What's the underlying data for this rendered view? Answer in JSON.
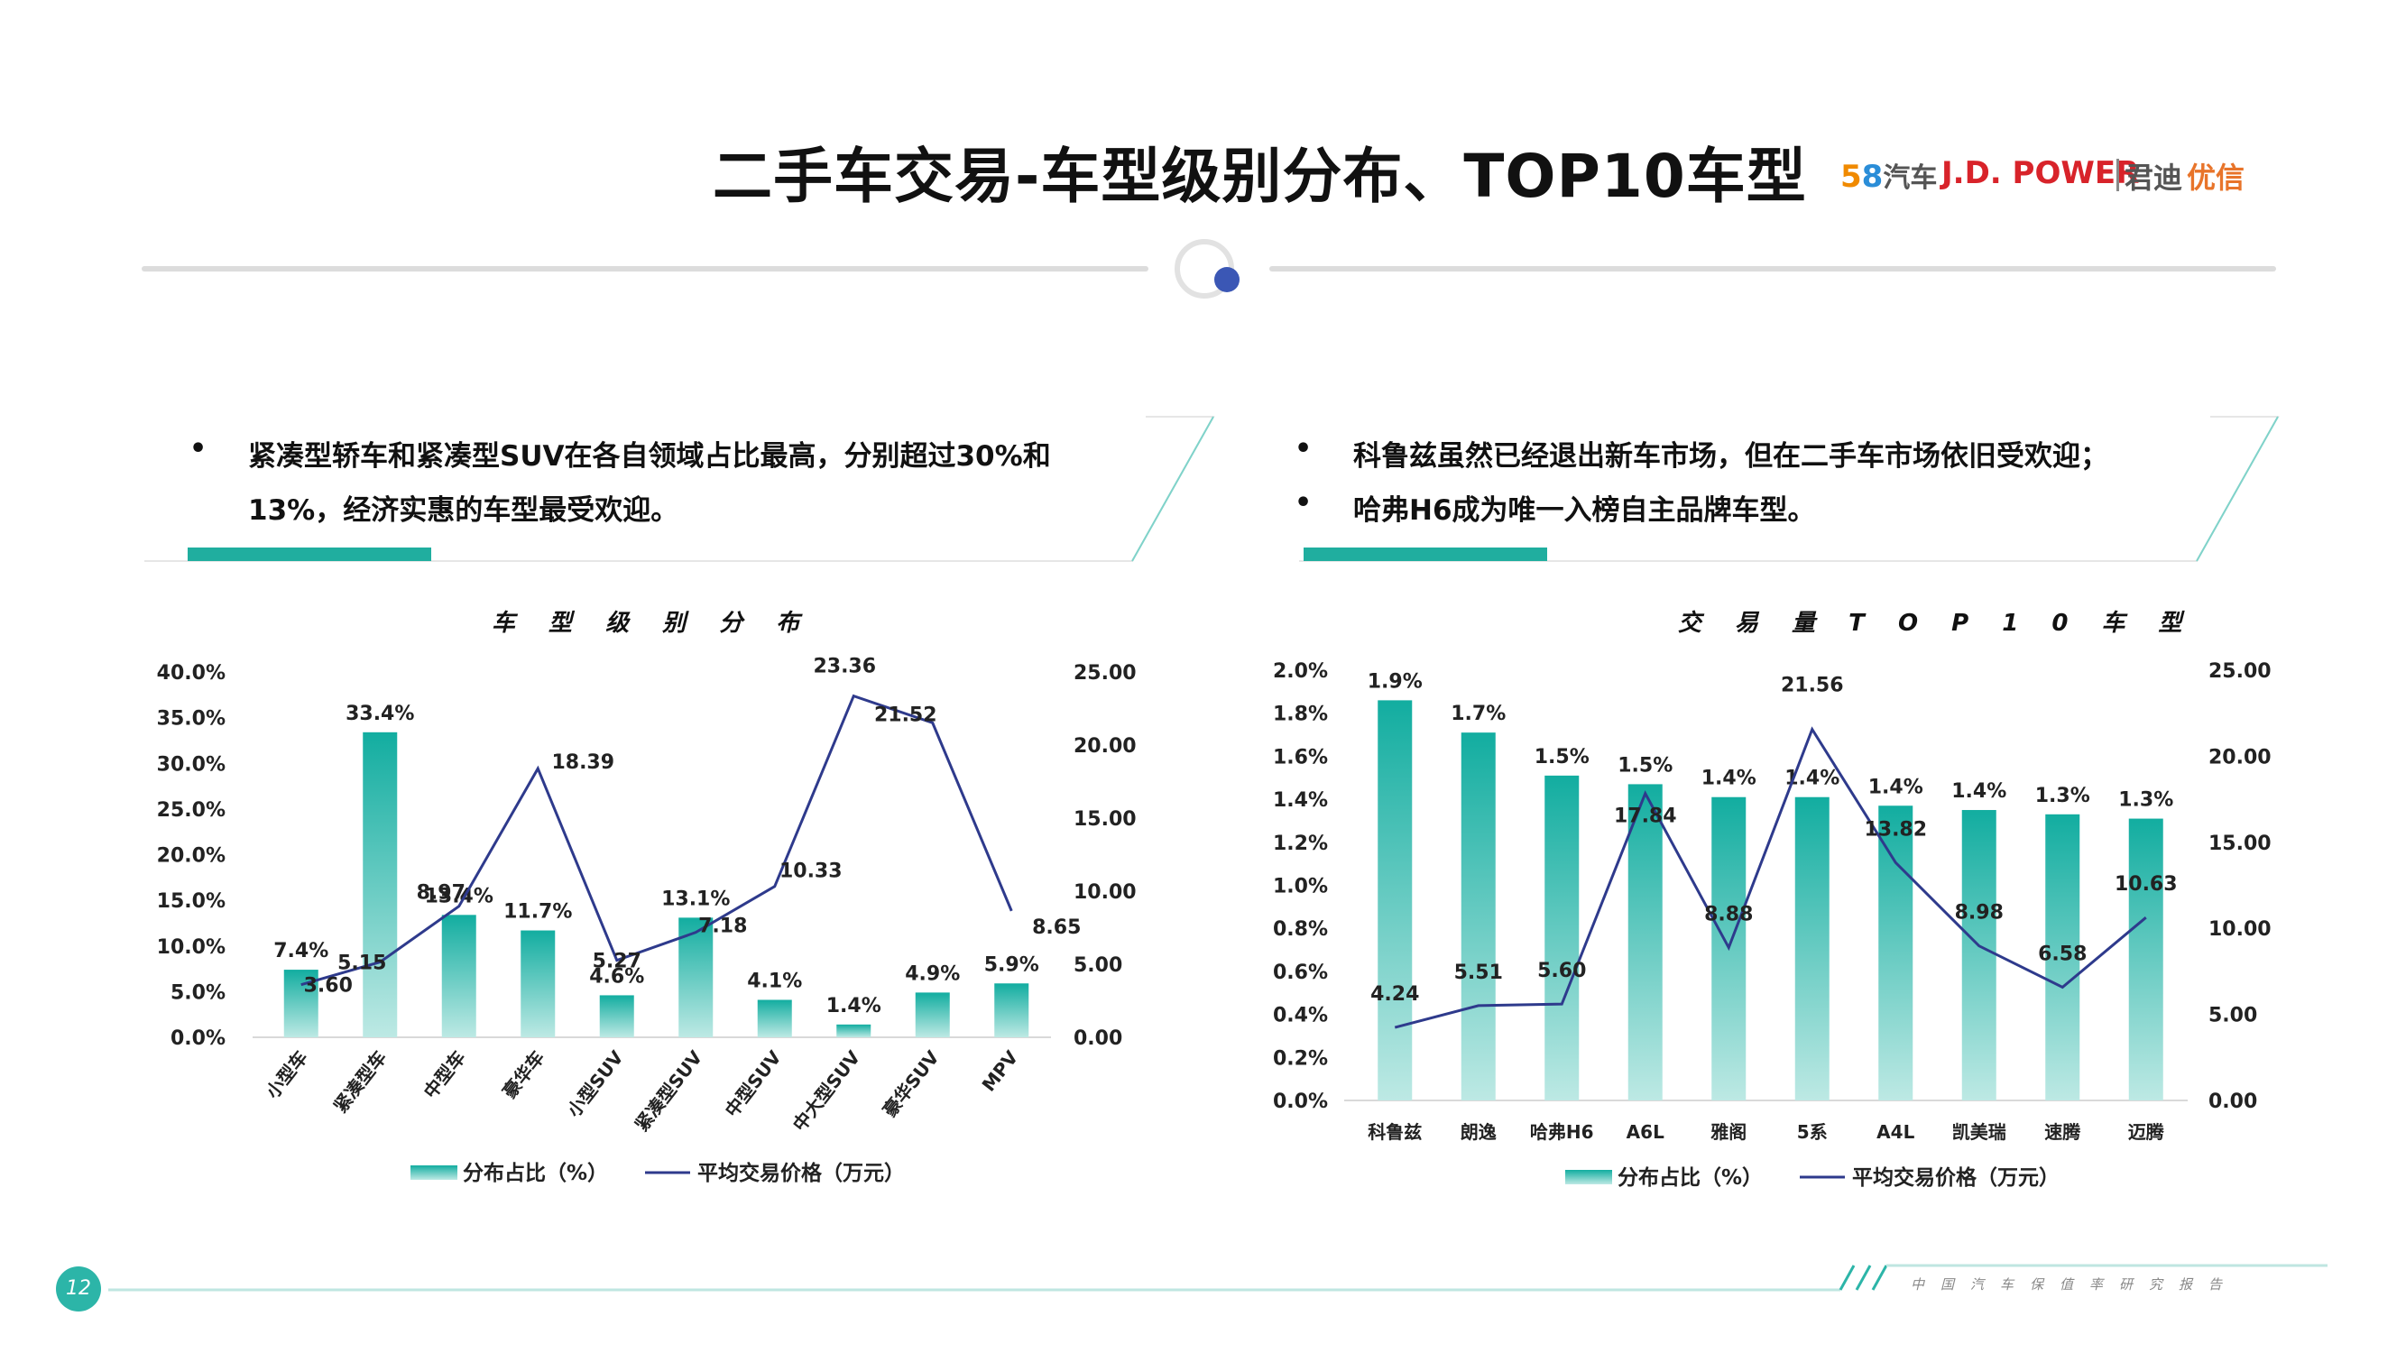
{
  "header": {
    "title": "二手车交易-车型级别分布、TOP10车型",
    "logos": {
      "logo_58_num5": "5",
      "logo_58_num8": "8",
      "logo_58_text": "汽车",
      "jdpower": "J.D. POWER",
      "jundi": "君迪",
      "youxin": "优信"
    }
  },
  "left_panel": {
    "bullet": "•",
    "lines": [
      "紧凑型轿车和紧凑型SUV在各自领域占比最高，分别超过30%和",
      "13%，经济实惠的车型最受欢迎。"
    ]
  },
  "right_panel": {
    "bullet": "•",
    "lines": [
      "科鲁兹虽然已经退出新车市场，但在二手车市场依旧受欢迎；",
      "哈弗H6成为唯一入榜自主品牌车型。"
    ]
  },
  "chart_data": [
    {
      "type": "bar",
      "title": "车 型 级 别 分 布",
      "categories": [
        "小型车",
        "紧凑型车",
        "中型车",
        "豪华车",
        "小型SUV",
        "紧凑型SUV",
        "中型SUV",
        "中大型SUV",
        "豪华SUV",
        "MPV"
      ],
      "series": [
        {
          "name": "分布占比（%）",
          "type": "bar",
          "axis": "left",
          "values": [
            7.4,
            33.4,
            13.4,
            11.7,
            4.6,
            13.1,
            4.1,
            1.4,
            4.9,
            5.9
          ],
          "labels": [
            "7.4%",
            "33.4%",
            "13.4%",
            "11.7%",
            "4.6%",
            "13.1%",
            "4.1%",
            "1.4%",
            "4.9%",
            "5.9%"
          ]
        },
        {
          "name": "平均交易价格（万元）",
          "type": "line",
          "axis": "right",
          "values": [
            3.6,
            5.15,
            8.97,
            18.39,
            5.27,
            7.18,
            10.33,
            23.36,
            21.52,
            8.65
          ],
          "labels": [
            "3.60",
            "5.15",
            "8.97",
            "18.39",
            "5.27",
            "7.18",
            "10.33",
            "23.36",
            "21.52",
            "8.65"
          ]
        }
      ],
      "y_left": {
        "min": 0,
        "max": 40,
        "ticks": [
          "0.0%",
          "5.0%",
          "10.0%",
          "15.0%",
          "20.0%",
          "25.0%",
          "30.0%",
          "35.0%",
          "40.0%"
        ]
      },
      "y_right": {
        "min": 0,
        "max": 25,
        "ticks": [
          "0.00",
          "5.00",
          "10.00",
          "15.00",
          "20.00",
          "25.00"
        ]
      },
      "legend_position": "bottom",
      "grid": false
    },
    {
      "type": "bar",
      "title": "交 易 量 T O P 1 0 车 型",
      "categories": [
        "科鲁兹",
        "朗逸",
        "哈弗H6",
        "A6L",
        "雅阁",
        "5系",
        "A4L",
        "凯美瑞",
        "速腾",
        "迈腾"
      ],
      "series": [
        {
          "name": "分布占比（%）",
          "type": "bar",
          "axis": "left",
          "values": [
            1.86,
            1.71,
            1.51,
            1.47,
            1.41,
            1.41,
            1.37,
            1.35,
            1.33,
            1.31
          ],
          "labels": [
            "1.9%",
            "1.7%",
            "1.5%",
            "1.5%",
            "1.4%",
            "1.4%",
            "1.4%",
            "1.4%",
            "1.3%",
            "1.3%"
          ]
        },
        {
          "name": "平均交易价格（万元）",
          "type": "line",
          "axis": "right",
          "values": [
            4.24,
            5.51,
            5.6,
            17.84,
            8.88,
            21.56,
            13.82,
            8.98,
            6.58,
            10.63
          ],
          "labels": [
            "4.24",
            "5.51",
            "5.60",
            "17.84",
            "8.88",
            "21.56",
            "13.82",
            "8.98",
            "6.58",
            "10.63"
          ]
        }
      ],
      "y_left": {
        "min": 0,
        "max": 2,
        "ticks": [
          "0.0%",
          "0.2%",
          "0.4%",
          "0.6%",
          "0.8%",
          "1.0%",
          "1.2%",
          "1.4%",
          "1.6%",
          "1.8%",
          "2.0%"
        ]
      },
      "y_right": {
        "min": 0,
        "max": 25,
        "ticks": [
          "0.00",
          "5.00",
          "10.00",
          "15.00",
          "20.00",
          "25.00"
        ]
      },
      "legend_position": "bottom",
      "grid": false
    }
  ],
  "legend": {
    "bar": "分布占比（%）",
    "line": "平均交易价格（万元）"
  },
  "footer": {
    "page_number": "12",
    "text": "中国汽车保值率研究报告"
  },
  "colors": {
    "bar_top": "#12ada0",
    "bar_bottom": "#bde9e4",
    "line": "#2e3a8c",
    "accent": "#2cb5a8"
  }
}
